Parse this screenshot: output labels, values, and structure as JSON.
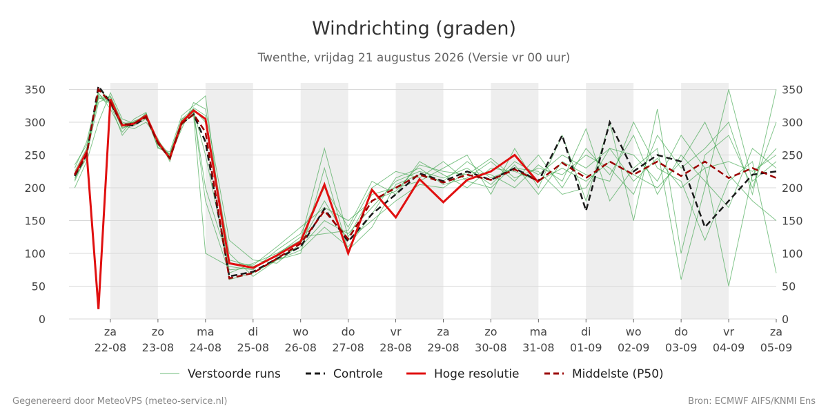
{
  "chart_data": {
    "type": "line",
    "title": "Windrichting (graden)",
    "subtitle": "Twenthe, vrijdag 21 augustus 2026 (Versie vr 00 uur)",
    "footer_left": "Gegenereerd door MeteoVPS (meteo-service.nl)",
    "footer_right": "Bron: ECMWF AIFS/KNMI Ens",
    "x": [
      0.25,
      0.5,
      0.75,
      1,
      1.25,
      1.5,
      1.75,
      2,
      2.25,
      2.5,
      2.75,
      3,
      3.5,
      4,
      4.5,
      5,
      5.5,
      6,
      6.5,
      7,
      7.5,
      8,
      8.5,
      9,
      9.5,
      10,
      10.5,
      11,
      11.5,
      12,
      12.5,
      13,
      13.5,
      14,
      14.5,
      15
    ],
    "xlim": [
      0.13,
      15
    ],
    "xticks": [
      {
        "value": 1,
        "weekday": "za",
        "label": "22-08"
      },
      {
        "value": 2,
        "weekday": "zo",
        "label": "23-08"
      },
      {
        "value": 3,
        "weekday": "ma",
        "label": "24-08"
      },
      {
        "value": 4,
        "weekday": "di",
        "label": "25-08"
      },
      {
        "value": 5,
        "weekday": "wo",
        "label": "26-08"
      },
      {
        "value": 6,
        "weekday": "do",
        "label": "27-08"
      },
      {
        "value": 7,
        "weekday": "vr",
        "label": "28-08"
      },
      {
        "value": 8,
        "weekday": "za",
        "label": "29-08"
      },
      {
        "value": 9,
        "weekday": "zo",
        "label": "30-08"
      },
      {
        "value": 10,
        "weekday": "ma",
        "label": "31-08"
      },
      {
        "value": 11,
        "weekday": "di",
        "label": "01-09"
      },
      {
        "value": 12,
        "weekday": "wo",
        "label": "02-09"
      },
      {
        "value": 13,
        "weekday": "do",
        "label": "03-09"
      },
      {
        "value": 14,
        "weekday": "vr",
        "label": "04-09"
      },
      {
        "value": 15,
        "weekday": "za",
        "label": "05-09"
      }
    ],
    "ylim": [
      0,
      360
    ],
    "yticks": [
      0,
      50,
      100,
      150,
      200,
      250,
      300,
      350
    ],
    "grid": true,
    "ensemble": {
      "name": "Verstoorde runs",
      "color": "#2e9e3e",
      "members": [
        [
          225,
          260,
          340,
          330,
          290,
          300,
          312,
          265,
          250,
          305,
          320,
          300,
          90,
          80,
          95,
          110,
          150,
          130,
          170,
          210,
          225,
          215,
          230,
          205,
          240,
          220,
          250,
          230,
          260,
          210,
          245,
          200,
          230,
          240,
          225,
          250
        ],
        [
          210,
          250,
          330,
          340,
          300,
          295,
          305,
          270,
          245,
          295,
          315,
          180,
          70,
          85,
          100,
          120,
          260,
          125,
          190,
          200,
          210,
          230,
          250,
          190,
          260,
          200,
          280,
          180,
          300,
          150,
          320,
          100,
          250,
          280,
          200,
          300
        ],
        [
          230,
          270,
          345,
          320,
          285,
          305,
          315,
          260,
          255,
          310,
          325,
          340,
          60,
          70,
          90,
          105,
          140,
          110,
          160,
          215,
          230,
          205,
          215,
          240,
          210,
          250,
          200,
          260,
          220,
          280,
          190,
          250,
          210,
          170,
          260,
          230
        ],
        [
          215,
          245,
          350,
          335,
          295,
          290,
          300,
          275,
          240,
          300,
          310,
          100,
          80,
          75,
          105,
          130,
          200,
          140,
          210,
          190,
          240,
          220,
          200,
          230,
          225,
          210,
          230,
          210,
          240,
          220,
          200,
          240,
          300,
          220,
          180,
          150
        ],
        [
          200,
          240,
          300,
          345,
          305,
          298,
          310,
          268,
          248,
          290,
          330,
          320,
          120,
          90,
          85,
          115,
          180,
          120,
          150,
          180,
          205,
          200,
          225,
          220,
          200,
          235,
          210,
          290,
          180,
          230,
          260,
          60,
          200,
          350,
          210,
          240
        ],
        [
          235,
          265,
          338,
          328,
          280,
          302,
          308,
          262,
          252,
          302,
          318,
          250,
          75,
          78,
          98,
          125,
          130,
          135,
          200,
          225,
          215,
          240,
          210,
          200,
          235,
          190,
          240,
          220,
          210,
          300,
          230,
          210,
          120,
          210,
          240,
          70
        ],
        [
          220,
          255,
          342,
          332,
          292,
          296,
          314,
          266,
          244,
          298,
          322,
          310,
          100,
          65,
          90,
          100,
          230,
          105,
          140,
          205,
          220,
          210,
          240,
          215,
          230,
          225,
          190,
          200,
          260,
          250,
          210,
          280,
          230,
          50,
          220,
          260
        ],
        [
          212,
          258,
          336,
          338,
          298,
          300,
          306,
          272,
          250,
          304,
          316,
          200,
          85,
          82,
          110,
          140,
          170,
          150,
          180,
          195,
          235,
          225,
          220,
          245,
          215,
          230,
          220,
          250,
          230,
          190,
          280,
          230,
          260,
          300,
          190,
          350
        ]
      ]
    },
    "series": [
      {
        "name": "Controle",
        "color": "#1a1a1a",
        "dash": true,
        "values": [
          218,
          250,
          355,
          330,
          295,
          295,
          308,
          268,
          245,
          298,
          312,
          270,
          65,
          72,
          92,
          110,
          168,
          118,
          160,
          190,
          222,
          210,
          225,
          212,
          230,
          210,
          280,
          165,
          300,
          225,
          250,
          240,
          140,
          180,
          220,
          225
        ]
      },
      {
        "name": "Hoge resolutie",
        "color": "#e01010",
        "dash": false,
        "values": [
          220,
          255,
          15,
          335,
          295,
          298,
          310,
          270,
          245,
          300,
          318,
          305,
          85,
          78,
          97,
          118,
          205,
          100,
          197,
          155,
          213,
          178,
          212,
          225,
          250,
          208,
          null,
          null,
          null,
          null,
          null,
          null,
          null,
          null,
          null,
          null
        ]
      },
      {
        "name": "Middelste (P50)",
        "color": "#9b0000",
        "dash": true,
        "values": [
          220,
          250,
          350,
          330,
          296,
          298,
          308,
          268,
          245,
          298,
          312,
          285,
          62,
          70,
          92,
          115,
          165,
          122,
          180,
          200,
          220,
          208,
          220,
          212,
          228,
          210,
          238,
          215,
          240,
          220,
          240,
          218,
          240,
          215,
          230,
          215
        ]
      }
    ]
  }
}
